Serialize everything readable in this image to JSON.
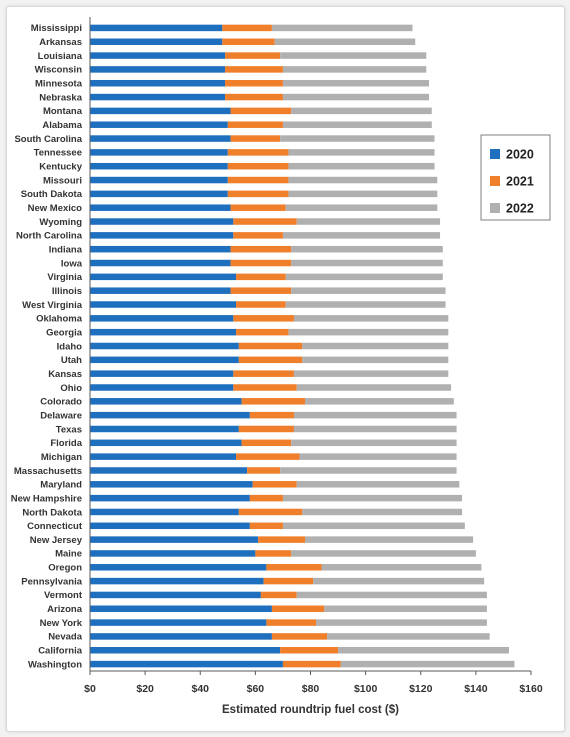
{
  "chart_data": {
    "type": "bar",
    "orientation": "horizontal",
    "stacked": true,
    "title": "",
    "xlabel": "Estimated roundtrip fuel cost ($)",
    "ylabel": "",
    "xlim": [
      0,
      160
    ],
    "x_ticks": [
      0,
      20,
      40,
      60,
      80,
      100,
      120,
      140,
      160
    ],
    "x_tick_labels": [
      "$0",
      "$20",
      "$40",
      "$60",
      "$80",
      "$100",
      "$120",
      "$140",
      "$160"
    ],
    "grid": false,
    "legend_position": "right",
    "categories": [
      "Mississippi",
      "Arkansas",
      "Louisiana",
      "Wisconsin",
      "Minnesota",
      "Nebraska",
      "Montana",
      "Alabama",
      "South Carolina",
      "Tennessee",
      "Kentucky",
      "Missouri",
      "South Dakota",
      "New Mexico",
      "Wyoming",
      "North Carolina",
      "Indiana",
      "Iowa",
      "Virginia",
      "Illinois",
      "West Virginia",
      "Oklahoma",
      "Georgia",
      "Idaho",
      "Utah",
      "Kansas",
      "Ohio",
      "Colorado",
      "Delaware",
      "Texas",
      "Florida",
      "Michigan",
      "Massachusetts",
      "Maryland",
      "New Hampshire",
      "North Dakota",
      "Connecticut",
      "New Jersey",
      "Maine",
      "Oregon",
      "Pennsylvania",
      "Vermont",
      "Arizona",
      "New York",
      "Nevada",
      "California",
      "Washington"
    ],
    "series": [
      {
        "name": "2020",
        "color": "#1f6fbf",
        "values": [
          48,
          48,
          49,
          49,
          49,
          49,
          51,
          50,
          51,
          50,
          50,
          50,
          50,
          51,
          52,
          52,
          51,
          51,
          53,
          51,
          53,
          52,
          53,
          54,
          54,
          52,
          52,
          55,
          58,
          54,
          55,
          53,
          57,
          59,
          58,
          54,
          58,
          61,
          60,
          64,
          63,
          62,
          66,
          64,
          66,
          69,
          70
        ]
      },
      {
        "name": "2021",
        "color": "#f07f2b",
        "values": [
          18,
          19,
          20,
          21,
          21,
          21,
          22,
          20,
          18,
          22,
          22,
          22,
          22,
          20,
          23,
          18,
          22,
          22,
          18,
          22,
          18,
          22,
          19,
          23,
          23,
          22,
          23,
          23,
          16,
          20,
          18,
          23,
          12,
          16,
          12,
          23,
          12,
          17,
          13,
          20,
          18,
          13,
          19,
          18,
          20,
          21,
          21
        ]
      },
      {
        "name": "2022",
        "color": "#b0b0b0",
        "values": [
          51,
          51,
          53,
          52,
          53,
          53,
          51,
          54,
          56,
          53,
          53,
          54,
          54,
          55,
          52,
          57,
          55,
          55,
          57,
          56,
          58,
          56,
          58,
          53,
          53,
          56,
          56,
          54,
          59,
          59,
          60,
          57,
          64,
          59,
          65,
          58,
          66,
          61,
          67,
          58,
          62,
          69,
          59,
          62,
          59,
          62,
          63
        ]
      }
    ]
  }
}
